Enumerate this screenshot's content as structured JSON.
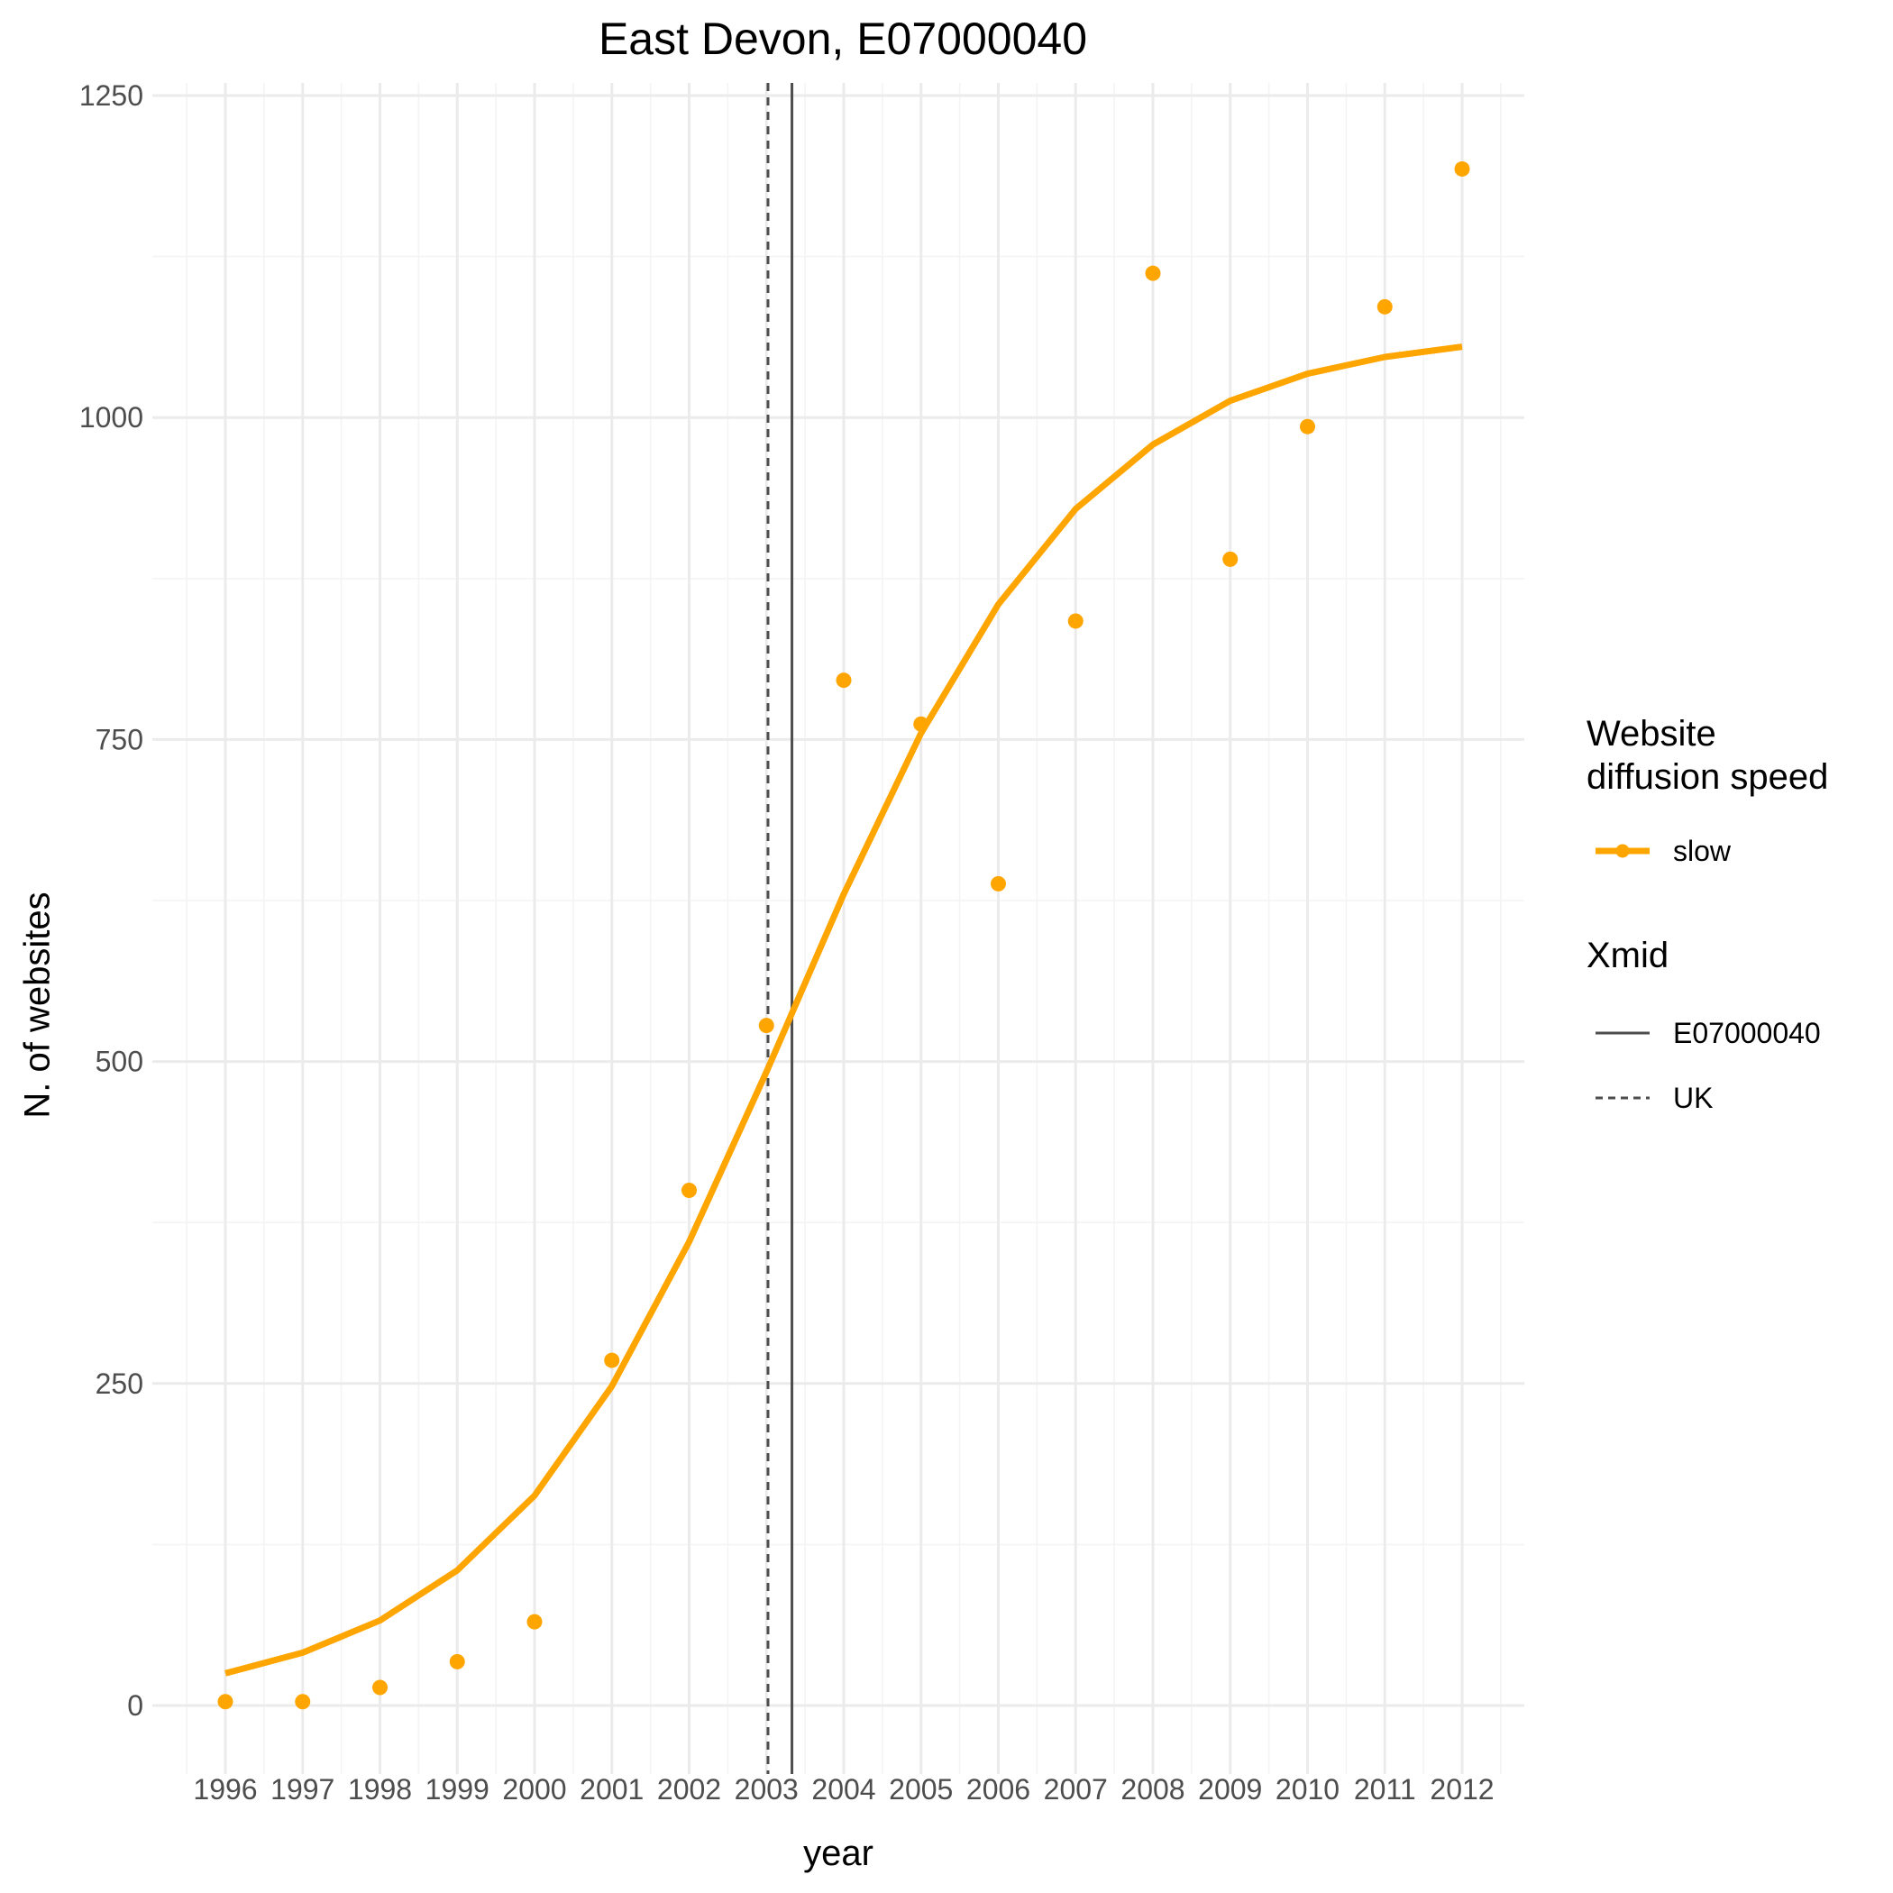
{
  "colors": {
    "series": "#FFA500",
    "vline": "#4D4D4D",
    "grid_major": "#EBEBEB",
    "grid_minor": "#F4F4F4",
    "tick_text": "#4D4D4D"
  },
  "chart_data": {
    "type": "line",
    "title": "East Devon, E07000040",
    "xlabel": "year",
    "ylabel": "N. of websites",
    "xlim": [
      1995.5,
      2012.5
    ],
    "ylim": [
      -50,
      1250
    ],
    "grid": true,
    "legend_position": "right",
    "x_ticks": [
      "1996",
      "1997",
      "1998",
      "1999",
      "2000",
      "2001",
      "2002",
      "2003",
      "2004",
      "2005",
      "2006",
      "2007",
      "2008",
      "2009",
      "2010",
      "2011",
      "2012"
    ],
    "y_ticks": [
      "0",
      "250",
      "500",
      "750",
      "1000",
      "1250"
    ],
    "series": [
      {
        "name": "slow",
        "points_x": [
          1996,
          1997,
          1998,
          1999,
          2000,
          2001,
          2002,
          2003,
          2004,
          2005,
          2006,
          2007,
          2008,
          2009,
          2010,
          2011,
          2012
        ],
        "points_y": [
          3,
          3,
          14,
          34,
          65,
          268,
          400,
          528,
          796,
          762,
          638,
          842,
          1112,
          890,
          993,
          1086,
          1193
        ],
        "fit_x": [
          1996,
          1997,
          1998,
          1999,
          2000,
          2001,
          2002,
          2003,
          2004,
          2005,
          2006,
          2007,
          2008,
          2009,
          2010,
          2011,
          2012
        ],
        "fit_y": [
          25,
          41,
          66,
          105,
          163,
          248,
          360,
          492,
          630,
          755,
          855,
          929,
          979,
          1013,
          1034,
          1047,
          1055
        ]
      }
    ],
    "vlines": [
      {
        "name": "E07000040",
        "x": 2003.33,
        "linetype": "solid"
      },
      {
        "name": "UK",
        "x": 2003.02,
        "linetype": "dashed"
      }
    ],
    "legends": [
      {
        "title": "Website\ndiffusion speed",
        "items": [
          "slow"
        ]
      },
      {
        "title": "Xmid",
        "items": [
          "E07000040",
          "UK"
        ]
      }
    ]
  }
}
